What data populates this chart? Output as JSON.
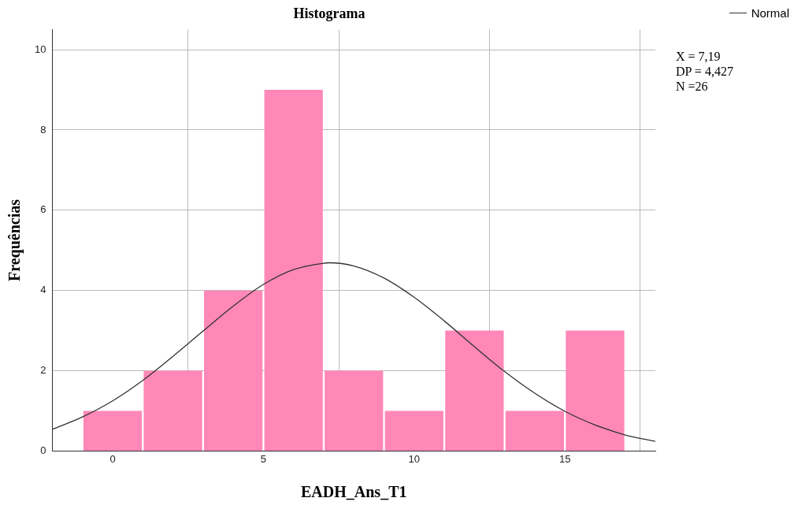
{
  "chart_data": {
    "type": "histogram",
    "title": "Histograma",
    "xlabel": "EADH_Ans_T1",
    "ylabel": "Frequências",
    "bins": [
      -1,
      1,
      3,
      5,
      7,
      9,
      11,
      13,
      15,
      17
    ],
    "values": [
      1,
      2,
      4,
      9,
      2,
      1,
      3,
      1,
      3
    ],
    "color": "#ff88b8",
    "series": [
      {
        "type": "line",
        "name": "Normal",
        "color": "#333333",
        "x": [
          -2,
          -1,
          0,
          1,
          2,
          3,
          4,
          5,
          6,
          7,
          7.19,
          8,
          9,
          10,
          11,
          12,
          13,
          14,
          15,
          16,
          17,
          18
        ],
        "values": [
          0.54,
          0.85,
          1.25,
          1.76,
          2.36,
          2.99,
          3.61,
          4.15,
          4.52,
          4.68,
          4.69,
          4.61,
          4.31,
          3.83,
          3.24,
          2.6,
          1.98,
          1.44,
          0.99,
          0.65,
          0.4,
          0.24
        ]
      }
    ],
    "xlim": [
      -2,
      18
    ],
    "xticks": [
      0,
      5,
      10,
      15
    ],
    "ylim": [
      0,
      10.5
    ],
    "yticks": [
      0,
      2,
      4,
      6,
      8,
      10
    ],
    "grid": true,
    "legend": "top right",
    "marker": "none",
    "line_style": "solid",
    "annotations": [
      "X = 7,19",
      "DP = 4,427",
      "N =26"
    ]
  }
}
